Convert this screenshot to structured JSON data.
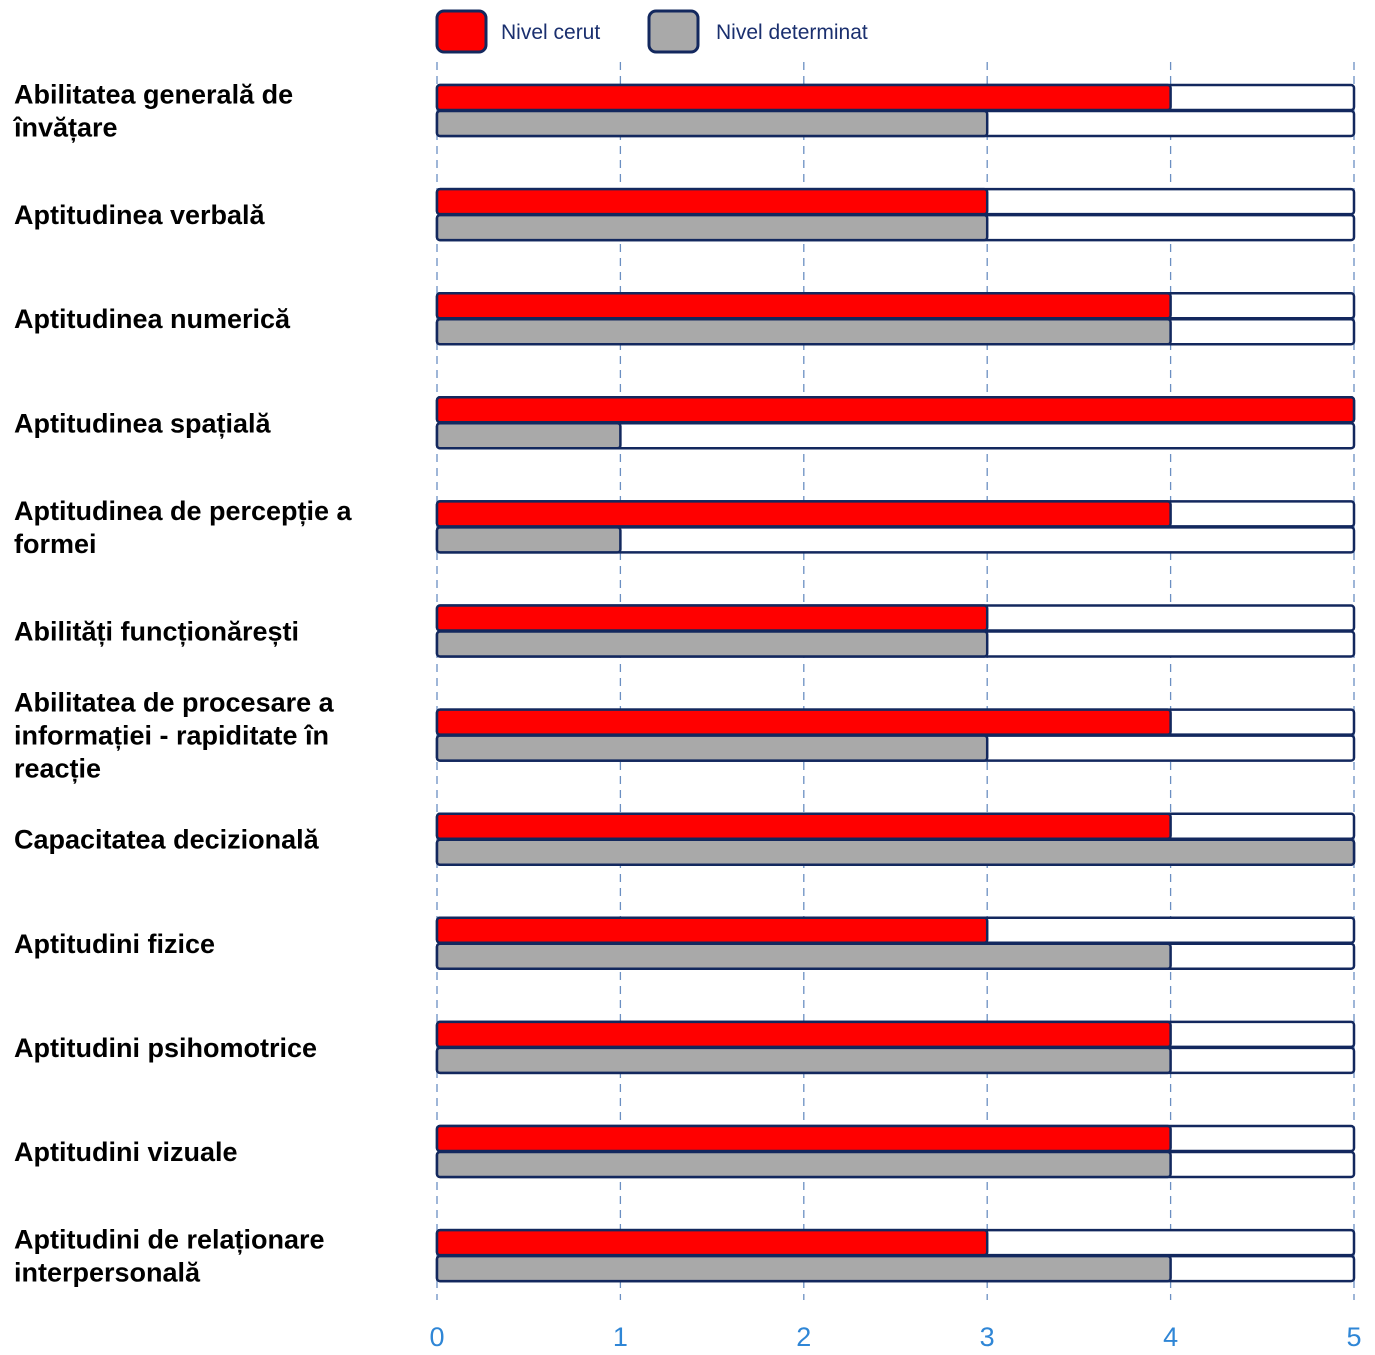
{
  "chart_data": {
    "type": "bar",
    "orientation": "horizontal",
    "categories": [
      [
        "Abilitatea generală de",
        "învățare"
      ],
      [
        "Aptitudinea verbală"
      ],
      [
        "Aptitudinea numerică"
      ],
      [
        "Aptitudinea spațială"
      ],
      [
        "Aptitudinea de percepție a",
        "formei"
      ],
      [
        "Abilități funcționărești"
      ],
      [
        "Abilitatea de procesare a",
        "informației - rapiditate în",
        "reacție"
      ],
      [
        "Capacitatea decizională"
      ],
      [
        "Aptitudini fizice"
      ],
      [
        "Aptitudini psihomotrice"
      ],
      [
        "Aptitudini vizuale"
      ],
      [
        "Aptitudini de relaționare",
        "interpersonală"
      ]
    ],
    "series": [
      {
        "name": "Nivel cerut",
        "color": "#ff0000",
        "values": [
          4,
          3,
          4,
          5,
          4,
          3,
          4,
          4,
          3,
          4,
          4,
          3
        ]
      },
      {
        "name": "Nivel determinat",
        "color": "#a9a9a9",
        "values": [
          3,
          3,
          4,
          1,
          1,
          3,
          3,
          5,
          4,
          4,
          4,
          4
        ]
      }
    ],
    "xlim": [
      0,
      5
    ],
    "xticks": [
      "0",
      "1",
      "2",
      "3",
      "4",
      "5"
    ],
    "legend_position": "top",
    "grid": "vertical dashed",
    "colors": {
      "outline": "#13285e",
      "grid": "#6b8fc2",
      "tick_label": "#2f86d6"
    }
  }
}
